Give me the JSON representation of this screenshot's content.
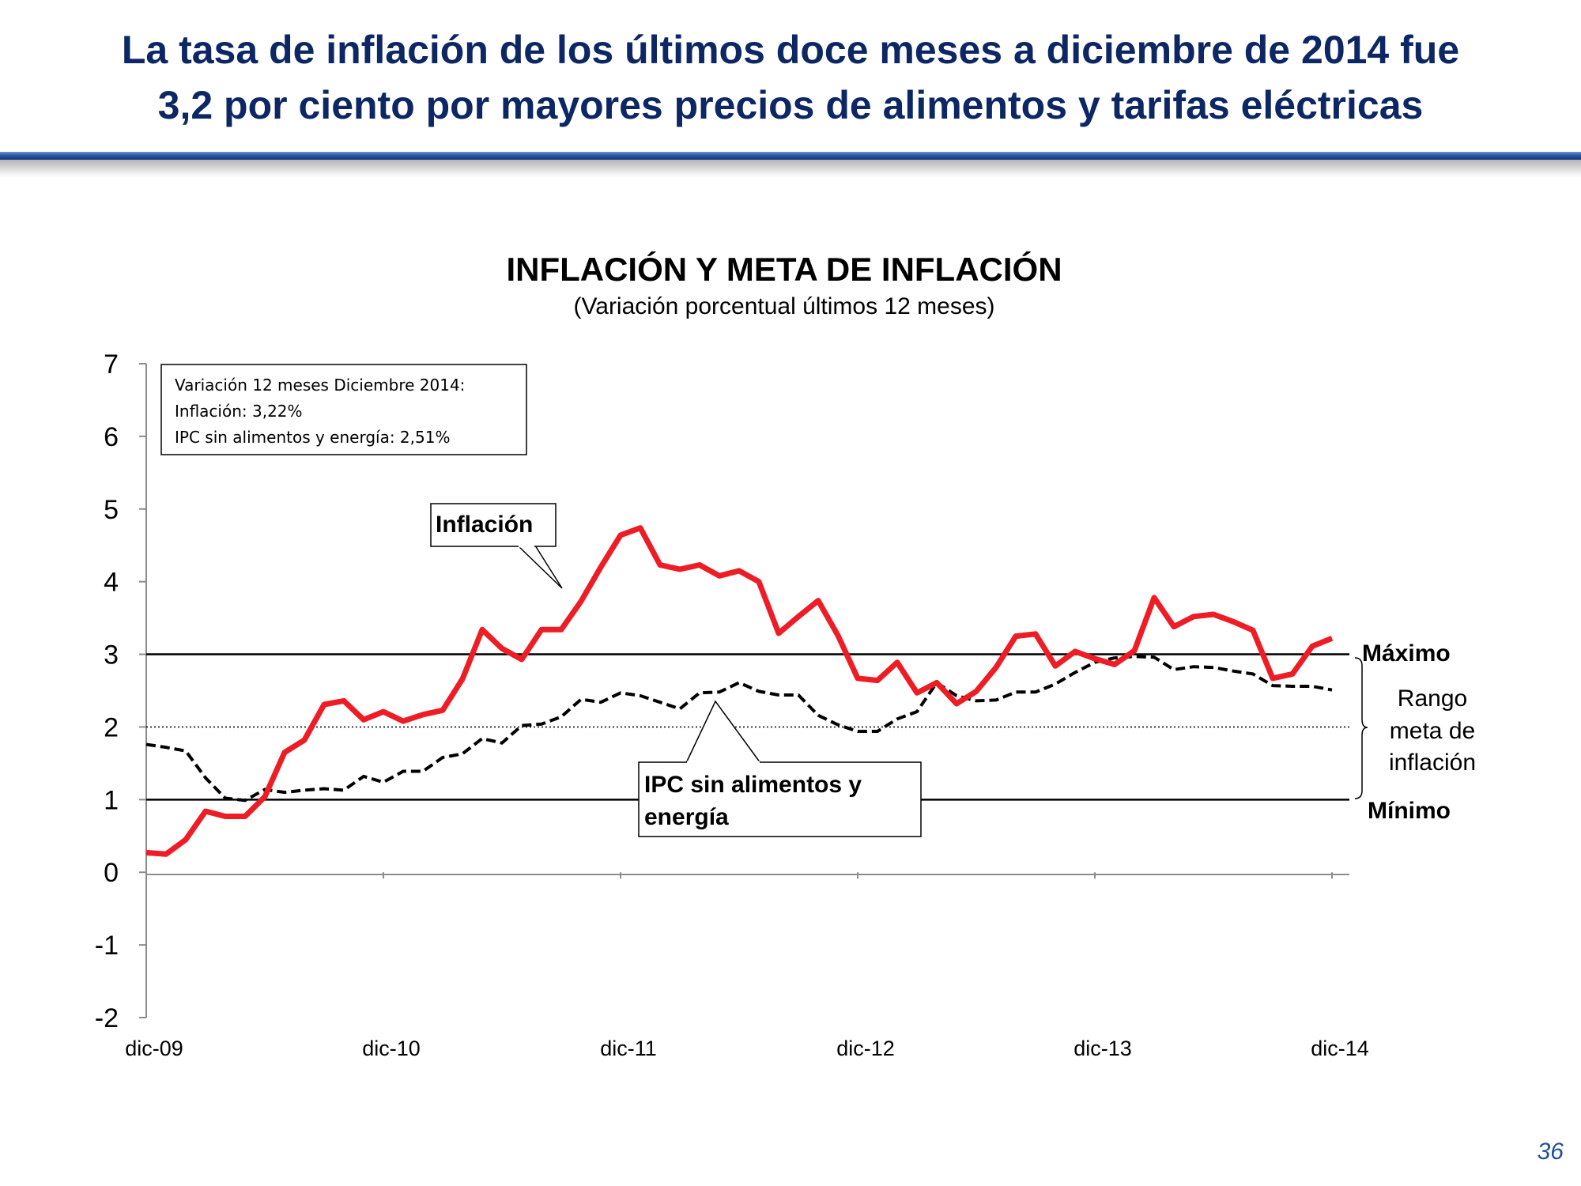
{
  "slide": {
    "title_line1": "La tasa de inflación de los últimos doce meses a diciembre de 2014 fue",
    "title_line2": "3,2 por ciento por mayores precios de alimentos y tarifas eléctricas",
    "page_number": "36",
    "accent_color": "#0d2764"
  },
  "chart_data": {
    "type": "line",
    "title": "INFLACIÓN Y META DE INFLACIÓN",
    "subtitle": "(Variación porcentual últimos 12 meses)",
    "ylim": [
      -2,
      7
    ],
    "yticks": [
      "7",
      "6",
      "5",
      "4",
      "3",
      "2",
      "1",
      "0",
      "-1",
      "-2"
    ],
    "xtick_labels": [
      "dic-09",
      "dic-10",
      "dic-11",
      "dic-12",
      "dic-13",
      "dic-14"
    ],
    "x_range": [
      "2009-12",
      "2014-12"
    ],
    "series": [
      {
        "name": "Inflación",
        "style": "solid",
        "color": "#ee1c25",
        "values": [
          0.27,
          0.25,
          0.45,
          0.84,
          0.77,
          0.77,
          1.04,
          1.65,
          1.82,
          2.31,
          2.36,
          2.1,
          2.21,
          2.08,
          2.17,
          2.23,
          2.66,
          3.34,
          3.08,
          2.93,
          3.34,
          3.34,
          3.73,
          4.2,
          4.64,
          4.74,
          4.23,
          4.17,
          4.23,
          4.08,
          4.15,
          4.0,
          3.29,
          3.52,
          3.74,
          3.26,
          2.67,
          2.64,
          2.89,
          2.47,
          2.61,
          2.32,
          2.49,
          2.82,
          3.25,
          3.28,
          2.84,
          3.04,
          2.94,
          2.86,
          3.05,
          3.78,
          3.38,
          3.52,
          3.55,
          3.45,
          3.33,
          2.67,
          2.73,
          3.11,
          3.22
        ]
      },
      {
        "name": "IPC sin alimentos y energía",
        "style": "dashed",
        "color": "#000000",
        "values": [
          1.76,
          1.72,
          1.67,
          1.3,
          1.02,
          0.99,
          1.14,
          1.1,
          1.13,
          1.15,
          1.13,
          1.32,
          1.24,
          1.39,
          1.39,
          1.58,
          1.63,
          1.84,
          1.78,
          2.02,
          2.04,
          2.14,
          2.38,
          2.34,
          2.47,
          2.43,
          2.34,
          2.25,
          2.47,
          2.48,
          2.61,
          2.49,
          2.44,
          2.44,
          2.16,
          2.03,
          1.94,
          1.94,
          2.11,
          2.21,
          2.61,
          2.43,
          2.36,
          2.37,
          2.48,
          2.48,
          2.59,
          2.75,
          2.89,
          2.95,
          2.97,
          2.96,
          2.79,
          2.83,
          2.82,
          2.77,
          2.73,
          2.57,
          2.56,
          2.56,
          2.51
        ]
      }
    ],
    "reference_lines": [
      {
        "name": "Máximo",
        "value": 3,
        "style": "solid"
      },
      {
        "name": "Meta",
        "value": 2,
        "style": "dotted"
      },
      {
        "name": "Mínimo",
        "value": 1,
        "style": "solid"
      }
    ],
    "labels": {
      "maximo": "Máximo",
      "minimo": "Mínimo",
      "rango_line1": "Rango",
      "rango_line2": "meta de",
      "rango_line3": "inflación",
      "inflacion_callout": "Inflación",
      "core_callout_line1": "IPC sin alimentos y",
      "core_callout_line2": "energía"
    },
    "info_box": {
      "line1": "Variación 12 meses Diciembre 2014:",
      "line2": "Inflación: 3,22%",
      "line3": "IPC sin alimentos y energía: 2,51%"
    },
    "grid": false,
    "legend": "none"
  }
}
